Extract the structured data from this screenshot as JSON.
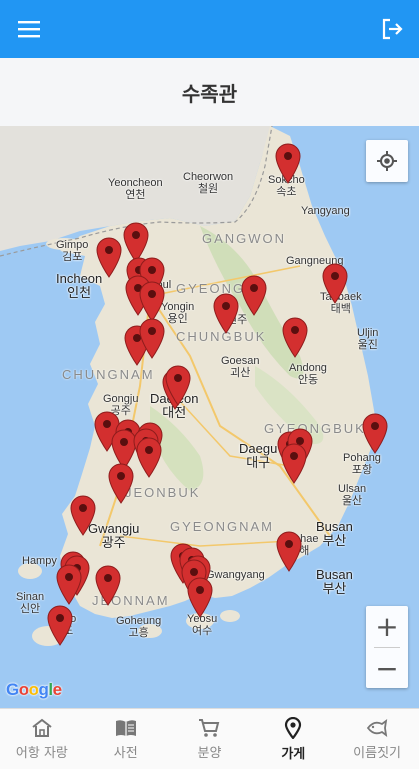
{
  "header": {
    "title": "수족관"
  },
  "map": {
    "provider": "Google",
    "labels": {
      "sokcho_en": "Sokcho",
      "sokcho_ko": "속초",
      "yeoncheon_en": "Yeoncheon",
      "yeoncheon_ko": "연천",
      "cheorwon_en": "Cheorwon",
      "cheorwon_ko": "철원",
      "yangyang": "Yangyang",
      "gimpo_en": "Gimpo",
      "gimpo_ko": "김포",
      "incheon_en": "Incheon",
      "incheon_ko": "인천",
      "seoul_en": "Seoul",
      "gangwon": "GANGWON",
      "gangneung": "Gangneung",
      "yongin_en": "Yongin",
      "yongin_ko": "용인",
      "gyeonggi": "GYEONGGI",
      "wonju": "원주",
      "taebaek_en": "Taebaek",
      "taebaek_ko": "태백",
      "chungbuk": "CHUNGBUK",
      "goesan_en": "Goesan",
      "goesan_ko": "괴산",
      "uljin_en": "Uljin",
      "uljin_ko": "울진",
      "chungnam": "CHUNGNAM",
      "andong_en": "Andong",
      "andong_ko": "안동",
      "gongju_en": "Gongju",
      "gongju_ko": "공주",
      "daejeon_en": "Daejeon",
      "daejeon_ko": "대전",
      "gyeongbuk": "GYEONGBUK",
      "daegu_en": "Daegu",
      "daegu_ko": "대구",
      "pohang_en": "Pohang",
      "pohang_ko": "포항",
      "jeonbuk": "JEONBUK",
      "ulsan_en": "Ulsan",
      "ulsan_ko": "울산",
      "gwangju_en": "Gwangju",
      "gwangju_ko": "광주",
      "gyeongnam": "GYEONGNAM",
      "gimhae_en": "Gimhae",
      "gimhae_ko": "김해",
      "busan_en": "Busan",
      "busan_ko": "부산",
      "hampyeong": "Hampy",
      "gwangyang": "Gwangyang",
      "sinan_en": "Sinan",
      "sinan_ko": "신안",
      "jeonnam": "JEONNAM",
      "jindo_en": "Jindo",
      "jindo_ko": "진도",
      "goheung_en": "Goheung",
      "goheung_ko": "고흥",
      "yeosu_en": "Yeosu",
      "yeosu_ko": "여수"
    },
    "marker_color": "#d32f2f",
    "marker_count": 38,
    "zoom_in_label": "+",
    "zoom_out_label": "−"
  },
  "bottom_nav": {
    "items": [
      {
        "label": "어항 자랑",
        "icon": "home-icon"
      },
      {
        "label": "사전",
        "icon": "book-icon"
      },
      {
        "label": "분양",
        "icon": "cart-icon"
      },
      {
        "label": "가게",
        "icon": "location-pin-icon",
        "active": true
      },
      {
        "label": "이름짓기",
        "icon": "fish-icon"
      }
    ]
  },
  "colors": {
    "primary": "#2196f3",
    "marker": "#d32f2f",
    "water": "#9ec9f3",
    "land": "#eae5d6"
  }
}
